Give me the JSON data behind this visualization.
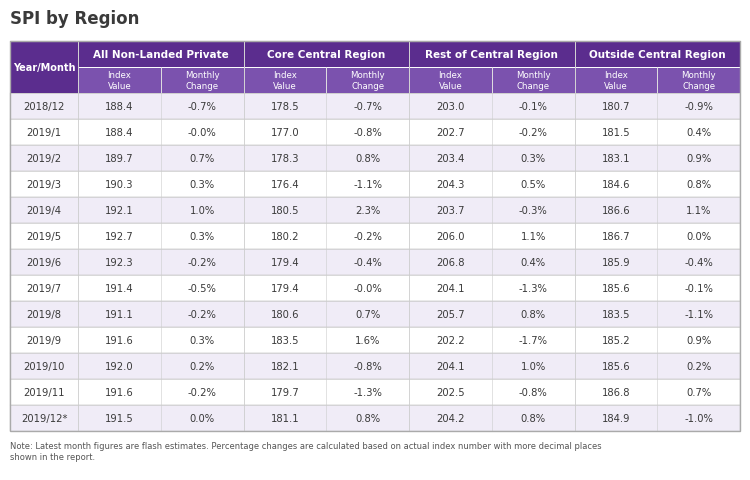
{
  "title": "SPI by Region",
  "col_groups": [
    {
      "name": "All Non-Landed Private"
    },
    {
      "name": "Core Central Region"
    },
    {
      "name": "Rest of Central Region"
    },
    {
      "name": "Outside Central Region"
    }
  ],
  "rows": [
    [
      "2018/12",
      "188.4",
      "-0.7%",
      "178.5",
      "-0.7%",
      "203.0",
      "-0.1%",
      "180.7",
      "-0.9%"
    ],
    [
      "2019/1",
      "188.4",
      "-0.0%",
      "177.0",
      "-0.8%",
      "202.7",
      "-0.2%",
      "181.5",
      "0.4%"
    ],
    [
      "2019/2",
      "189.7",
      "0.7%",
      "178.3",
      "0.8%",
      "203.4",
      "0.3%",
      "183.1",
      "0.9%"
    ],
    [
      "2019/3",
      "190.3",
      "0.3%",
      "176.4",
      "-1.1%",
      "204.3",
      "0.5%",
      "184.6",
      "0.8%"
    ],
    [
      "2019/4",
      "192.1",
      "1.0%",
      "180.5",
      "2.3%",
      "203.7",
      "-0.3%",
      "186.6",
      "1.1%"
    ],
    [
      "2019/5",
      "192.7",
      "0.3%",
      "180.2",
      "-0.2%",
      "206.0",
      "1.1%",
      "186.7",
      "0.0%"
    ],
    [
      "2019/6",
      "192.3",
      "-0.2%",
      "179.4",
      "-0.4%",
      "206.8",
      "0.4%",
      "185.9",
      "-0.4%"
    ],
    [
      "2019/7",
      "191.4",
      "-0.5%",
      "179.4",
      "-0.0%",
      "204.1",
      "-1.3%",
      "185.6",
      "-0.1%"
    ],
    [
      "2019/8",
      "191.1",
      "-0.2%",
      "180.6",
      "0.7%",
      "205.7",
      "0.8%",
      "183.5",
      "-1.1%"
    ],
    [
      "2019/9",
      "191.6",
      "0.3%",
      "183.5",
      "1.6%",
      "202.2",
      "-1.7%",
      "185.2",
      "0.9%"
    ],
    [
      "2019/10",
      "192.0",
      "0.2%",
      "182.1",
      "-0.8%",
      "204.1",
      "1.0%",
      "185.6",
      "0.2%"
    ],
    [
      "2019/11",
      "191.6",
      "-0.2%",
      "179.7",
      "-1.3%",
      "202.5",
      "-0.8%",
      "186.8",
      "0.7%"
    ],
    [
      "2019/12*",
      "191.5",
      "0.0%",
      "181.1",
      "0.8%",
      "204.2",
      "0.8%",
      "184.9",
      "-1.0%"
    ]
  ],
  "note1": "Note: Latest month figures are flash estimates. Percentage changes are calculated based on actual index number with more decimal places",
  "note2": "shown in the report.",
  "header_bg": "#5b2d8e",
  "subheader_bg": "#7b52ae",
  "row_bg_odd": "#f0ecf7",
  "row_bg_even": "#ffffff",
  "header_text_color": "#ffffff",
  "body_text_color": "#3a3a3a",
  "grid_color": "#cccccc",
  "title_color": "#3a3a3a",
  "border_color": "#aaaaaa"
}
